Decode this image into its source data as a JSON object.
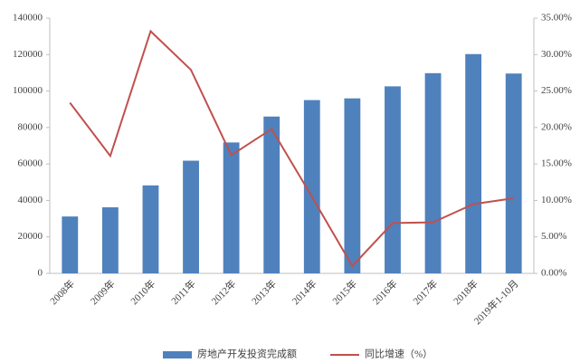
{
  "chart_data": {
    "type": "bar",
    "categories": [
      "2008年",
      "2009年",
      "2010年",
      "2011年",
      "2012年",
      "2013年",
      "2014年",
      "2015年",
      "2016年",
      "2017年",
      "2018年",
      "2019年1-10月"
    ],
    "series": [
      {
        "name": "房地产开发投资完成额",
        "color": "#4f81bd",
        "type": "bar",
        "values": [
          31203,
          36242,
          48259,
          61796,
          71804,
          86013,
          95036,
          95979,
          102581,
          109799,
          120264,
          109603
        ]
      },
      {
        "name": "同比增速（%）",
        "color": "#c0504d",
        "type": "line",
        "axis": "y2",
        "values": [
          23.4,
          16.1,
          33.2,
          27.9,
          16.2,
          19.8,
          10.5,
          1.0,
          6.9,
          7.0,
          9.5,
          10.3
        ]
      }
    ],
    "ylim": [
      0,
      140000
    ],
    "yticks": [
      0,
      20000,
      40000,
      60000,
      80000,
      100000,
      120000,
      140000
    ],
    "y2lim": [
      0,
      35
    ],
    "y2ticks": [
      {
        "value": 0,
        "label": "0.00%"
      },
      {
        "value": 5,
        "label": "5.00%"
      },
      {
        "value": 10,
        "label": "10.00%"
      },
      {
        "value": 15,
        "label": "15.00%"
      },
      {
        "value": 20,
        "label": "20.00%"
      },
      {
        "value": 25,
        "label": "25.00%"
      },
      {
        "value": 30,
        "label": "30.00%"
      },
      {
        "value": 35,
        "label": "35.00%"
      }
    ],
    "legend": "bottom"
  }
}
